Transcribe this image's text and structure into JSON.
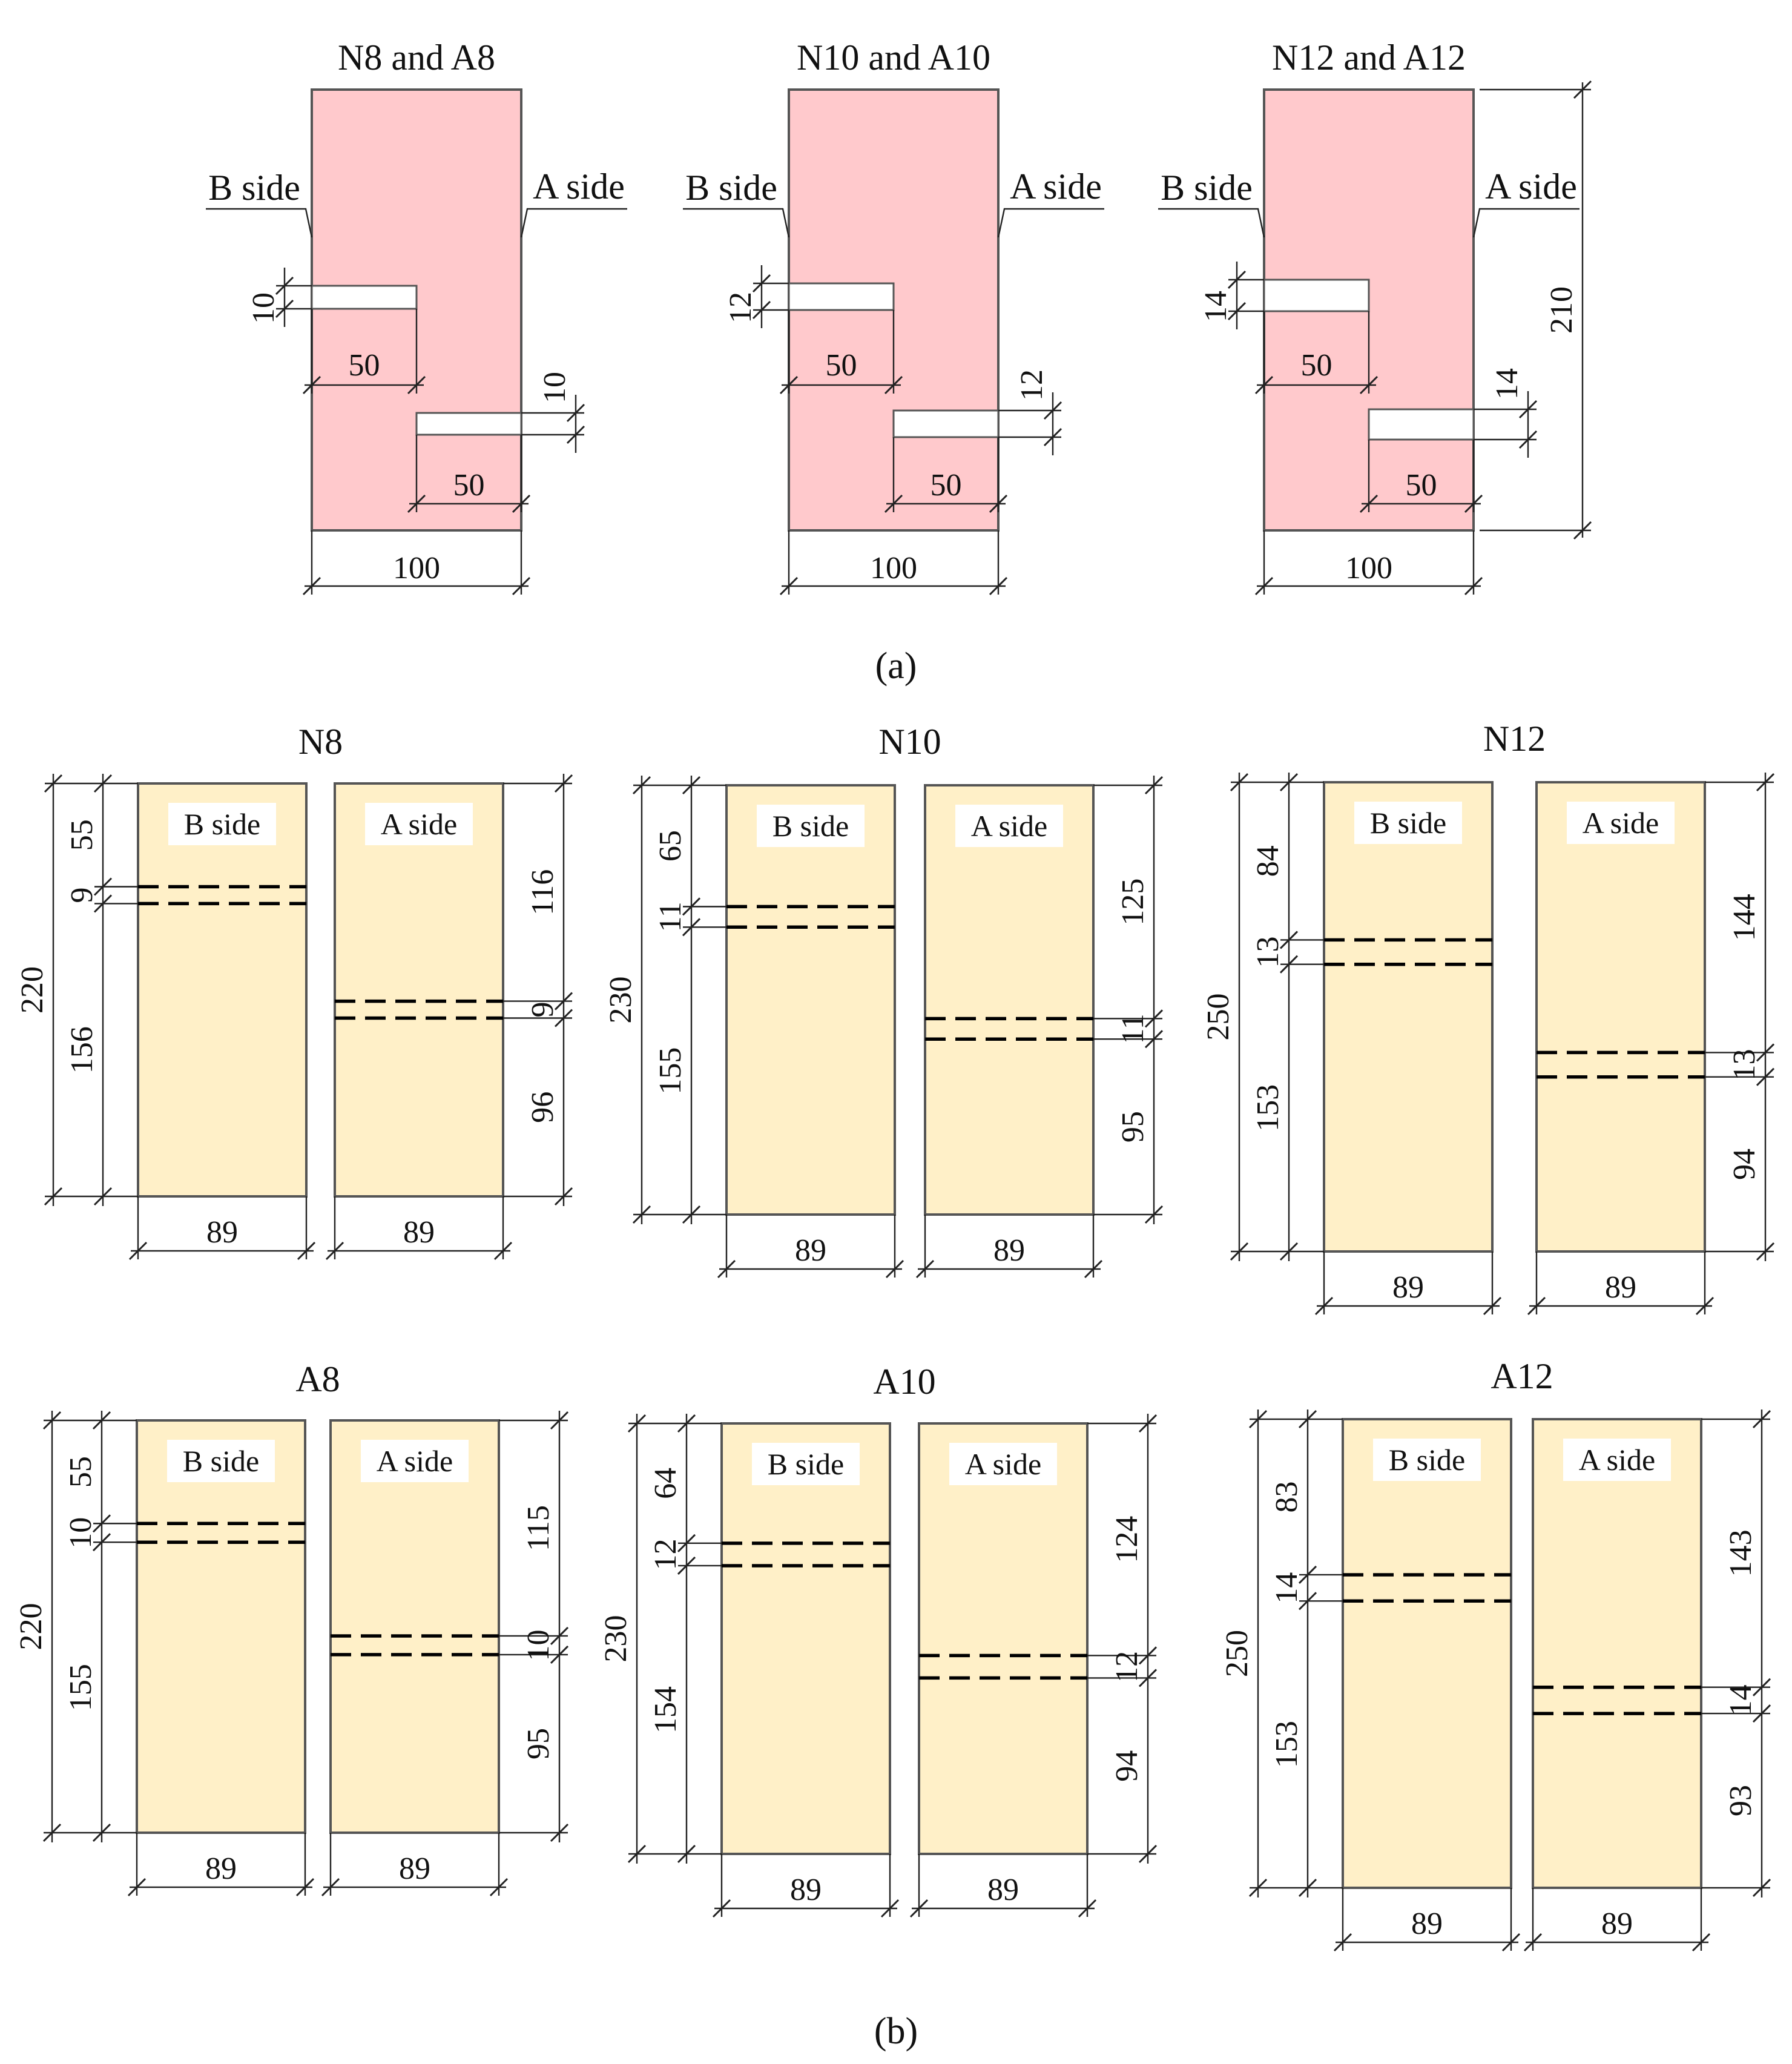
{
  "colors": {
    "part_a_fill": "#ffc9cc",
    "part_b_fill": "#fff0c8"
  },
  "part_a": {
    "caption": "(a)",
    "specimens": [
      {
        "title": "N8 and A8",
        "b_side": "B side",
        "a_side": "A side",
        "slot_b_height": "10",
        "slot_b_depth": "50",
        "slot_a_height": "10",
        "slot_a_depth": "50",
        "width": "100",
        "height": ""
      },
      {
        "title": "N10 and A10",
        "b_side": "B side",
        "a_side": "A side",
        "slot_b_height": "12",
        "slot_b_depth": "50",
        "slot_a_height": "12",
        "slot_a_depth": "50",
        "width": "100",
        "height": ""
      },
      {
        "title": "N12 and A12",
        "b_side": "B side",
        "a_side": "A side",
        "slot_b_height": "14",
        "slot_b_depth": "50",
        "slot_a_height": "14",
        "slot_a_depth": "50",
        "width": "100",
        "height": "210"
      }
    ]
  },
  "part_b": {
    "caption": "(b)",
    "specimens": [
      {
        "title": "N8",
        "b_side": "B side",
        "a_side": "A side",
        "total": "220",
        "b_top": "55",
        "b_gap": "9",
        "b_bottom": "156",
        "a_top": "116",
        "a_gap": "9",
        "a_bottom": "96",
        "width_b": "89",
        "width_a": "89"
      },
      {
        "title": "N10",
        "b_side": "B side",
        "a_side": "A side",
        "total": "230",
        "b_top": "65",
        "b_gap": "11",
        "b_bottom": "155",
        "a_top": "125",
        "a_gap": "11",
        "a_bottom": "95",
        "width_b": "89",
        "width_a": "89"
      },
      {
        "title": "N12",
        "b_side": "B side",
        "a_side": "A side",
        "total": "250",
        "b_top": "84",
        "b_gap": "13",
        "b_bottom": "153",
        "a_top": "144",
        "a_gap": "13",
        "a_bottom": "94",
        "width_b": "89",
        "width_a": "89"
      },
      {
        "title": "A8",
        "b_side": "B side",
        "a_side": "A side",
        "total": "220",
        "b_top": "55",
        "b_gap": "10",
        "b_bottom": "155",
        "a_top": "115",
        "a_gap": "10",
        "a_bottom": "95",
        "width_b": "89",
        "width_a": "89"
      },
      {
        "title": "A10",
        "b_side": "B side",
        "a_side": "A side",
        "total": "230",
        "b_top": "64",
        "b_gap": "12",
        "b_bottom": "154",
        "a_top": "124",
        "a_gap": "12",
        "a_bottom": "94",
        "width_b": "89",
        "width_a": "89"
      },
      {
        "title": "A12",
        "b_side": "B side",
        "a_side": "A side",
        "total": "250",
        "b_top": "83",
        "b_gap": "14",
        "b_bottom": "153",
        "a_top": "143",
        "a_gap": "14",
        "a_bottom": "93",
        "width_b": "89",
        "width_a": "89"
      }
    ]
  }
}
